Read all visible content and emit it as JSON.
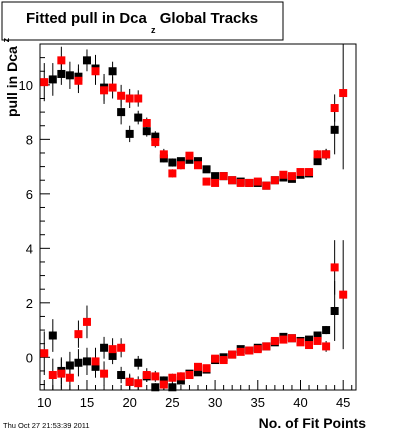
{
  "chart_data": {
    "type": "scatter",
    "title": "Fitted pull in Dca",
    "title_subscript": "z",
    "title_suffix": " Global Tracks",
    "xlabel": "No. of Fit Points",
    "ylabel": "pull in Dca",
    "ylabel_subscript": "z",
    "timestamp": "Thu Oct 27 21:53:39 2011",
    "xlim": [
      9.5,
      46.5
    ],
    "ylim": [
      -1.2,
      11.5
    ],
    "x_ticks": [
      10,
      15,
      20,
      25,
      30,
      35,
      40,
      45
    ],
    "y_ticks": [
      0,
      2,
      4,
      6,
      8,
      10
    ],
    "grid": false,
    "legend": "none",
    "marker": "square",
    "series": [
      {
        "color": "#000000",
        "sigma": {
          "x": [
            11,
            12,
            13,
            14,
            15,
            16,
            17,
            18,
            19,
            20,
            21,
            22,
            23,
            24,
            25,
            26,
            27,
            28,
            29,
            30,
            31,
            32,
            33,
            34,
            35,
            36,
            37,
            38,
            39,
            40,
            41,
            42,
            43,
            44
          ],
          "y": [
            10.2,
            10.4,
            10.35,
            10.3,
            10.9,
            10.6,
            9.9,
            10.5,
            9.0,
            8.2,
            8.8,
            8.3,
            8.1,
            7.3,
            7.15,
            7.2,
            7.25,
            7.2,
            6.9,
            6.65,
            6.65,
            6.5,
            6.45,
            6.4,
            6.4,
            6.3,
            6.5,
            6.6,
            6.55,
            6.7,
            6.75,
            7.2,
            7.45,
            8.35
          ],
          "err": [
            0.6,
            0.4,
            0.5,
            0.45,
            0.4,
            0.5,
            0.5,
            0.35,
            0.45,
            0.3,
            0.25,
            0.2,
            0.2,
            0.15,
            0.15,
            0.12,
            0.12,
            0.1,
            0.1,
            0.1,
            0.1,
            0.08,
            0.08,
            0.08,
            0.08,
            0.08,
            0.08,
            0.08,
            0.08,
            0.1,
            0.1,
            0.12,
            0.2,
            0.9
          ]
        },
        "mean": {
          "x": [
            11,
            12,
            13,
            14,
            15,
            16,
            17,
            18,
            19,
            20,
            21,
            22,
            23,
            24,
            25,
            26,
            27,
            28,
            29,
            30,
            31,
            32,
            33,
            34,
            35,
            36,
            37,
            38,
            39,
            40,
            41,
            42,
            43,
            44
          ],
          "y": [
            0.8,
            -0.5,
            -0.3,
            -0.2,
            -0.15,
            -0.35,
            0.35,
            0.05,
            -0.65,
            -0.9,
            -0.2,
            -0.7,
            -1.1,
            -0.85,
            -1.1,
            -0.85,
            -0.6,
            -0.55,
            -0.45,
            -0.1,
            0.0,
            0.1,
            0.3,
            0.25,
            0.35,
            0.4,
            0.55,
            0.75,
            0.7,
            0.6,
            0.65,
            0.8,
            1.0,
            1.7
          ],
          "err": [
            0.6,
            0.5,
            0.5,
            0.5,
            0.5,
            0.4,
            0.4,
            0.3,
            0.3,
            0.25,
            0.25,
            0.2,
            0.15,
            0.15,
            0.15,
            0.1,
            0.1,
            0.1,
            0.08,
            0.08,
            0.08,
            0.08,
            0.08,
            0.08,
            0.08,
            0.08,
            0.08,
            0.08,
            0.08,
            0.08,
            0.1,
            0.1,
            0.15,
            1.1
          ]
        }
      },
      {
        "color": "#ff0000",
        "sigma": {
          "x": [
            10,
            12,
            14,
            16,
            17,
            18,
            19,
            20,
            21,
            22,
            23,
            24,
            25,
            26,
            27,
            28,
            29,
            30,
            31,
            32,
            33,
            34,
            35,
            36,
            37,
            38,
            39,
            40,
            41,
            42,
            43,
            44,
            45
          ],
          "y": [
            10.1,
            10.9,
            10.15,
            10.5,
            9.8,
            9.9,
            9.6,
            9.5,
            9.5,
            8.6,
            7.9,
            7.45,
            6.75,
            7.05,
            7.4,
            7.05,
            6.45,
            6.4,
            6.65,
            6.5,
            6.4,
            6.4,
            6.45,
            6.3,
            6.5,
            6.7,
            6.65,
            6.8,
            6.8,
            7.45,
            7.45,
            9.15,
            9.7
          ],
          "err": [
            0.7,
            0.5,
            0.45,
            0.5,
            0.5,
            0.4,
            0.4,
            0.35,
            0.3,
            0.2,
            0.2,
            0.2,
            0.15,
            0.15,
            0.12,
            0.12,
            0.1,
            0.1,
            0.1,
            0.08,
            0.08,
            0.08,
            0.08,
            0.08,
            0.08,
            0.08,
            0.08,
            0.1,
            0.1,
            0.15,
            0.2,
            0.5,
            2.8
          ]
        },
        "mean": {
          "x": [
            10,
            11,
            12,
            13,
            14,
            15,
            16,
            17,
            18,
            19,
            20,
            21,
            22,
            23,
            24,
            25,
            26,
            27,
            28,
            29,
            30,
            31,
            32,
            33,
            34,
            35,
            36,
            37,
            38,
            39,
            40,
            41,
            42,
            43,
            44,
            45
          ],
          "y": [
            0.15,
            -0.65,
            -0.6,
            -0.75,
            0.85,
            1.3,
            -0.15,
            -0.6,
            0.3,
            0.35,
            -0.9,
            -0.95,
            -0.65,
            -0.7,
            -1.0,
            -0.75,
            -0.7,
            -0.65,
            -0.35,
            -0.4,
            -0.05,
            -0.1,
            0.1,
            0.2,
            0.25,
            0.3,
            0.4,
            0.6,
            0.65,
            0.7,
            0.55,
            0.45,
            0.6,
            0.4,
            3.3,
            2.3
          ],
          "err": [
            0.8,
            0.6,
            0.55,
            0.5,
            0.5,
            0.6,
            0.5,
            0.45,
            0.4,
            0.35,
            0.3,
            0.25,
            0.25,
            0.2,
            0.2,
            0.15,
            0.15,
            0.12,
            0.12,
            0.1,
            0.1,
            0.1,
            0.08,
            0.08,
            0.08,
            0.08,
            0.08,
            0.08,
            0.08,
            0.08,
            0.08,
            0.1,
            0.12,
            0.2,
            1.0,
            2.0
          ]
        }
      }
    ]
  }
}
